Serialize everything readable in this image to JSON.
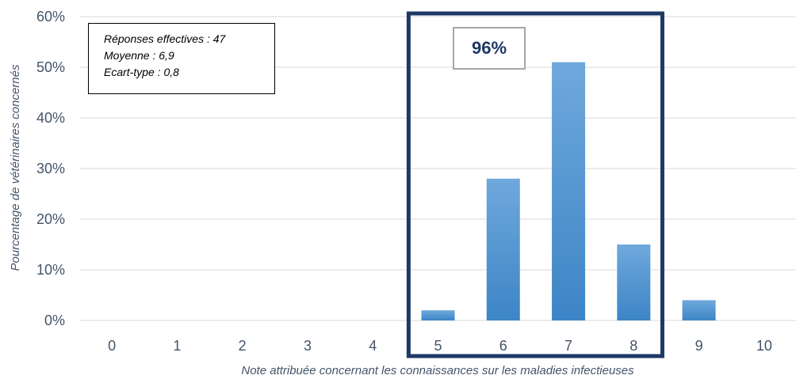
{
  "chart_data": {
    "type": "bar",
    "categories": [
      "0",
      "1",
      "2",
      "3",
      "4",
      "5",
      "6",
      "7",
      "8",
      "9",
      "10"
    ],
    "values": [
      0,
      0,
      0,
      0,
      0,
      2,
      28,
      51,
      15,
      4,
      0
    ],
    "xlabel": "Note attribuée concernant les connaissances sur les maladies infectieuses",
    "ylabel": "Pourcentage de vétérinaires concernés",
    "ylim": [
      0,
      60
    ],
    "yticks": [
      "0%",
      "10%",
      "20%",
      "30%",
      "40%",
      "50%",
      "60%"
    ],
    "grid": true,
    "highlight": {
      "from": "5",
      "to": "8",
      "label": "96%"
    },
    "stats": [
      "Réponses effectives : 47",
      "Moyenne : 6,9",
      "Ecart-type : 0,8"
    ],
    "colors": {
      "bar_top": "#6fa8dc",
      "bar_bottom": "#3d85c6",
      "highlight_border": "#1f3864",
      "text": "#44546a",
      "grid": "#d9d9d9"
    }
  }
}
